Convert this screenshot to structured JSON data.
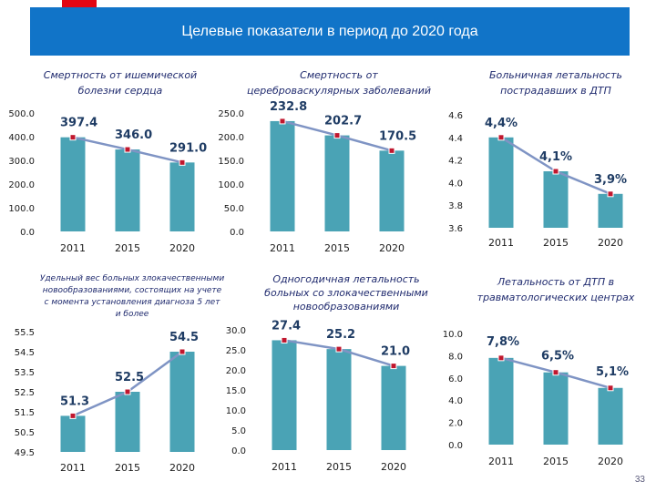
{
  "header": {
    "title": "Целевые показатели в период до 2020 года"
  },
  "page_number": "33",
  "colors": {
    "bar": "#4aa3b5",
    "line": "#7f94c4",
    "marker": "#c0172e",
    "header_bg": "#1174c8",
    "accent": "#e30613"
  },
  "chart_data": [
    {
      "type": "bar",
      "title": [
        "Смертность от ишемической",
        "болезни сердца"
      ],
      "categories": [
        "2011",
        "2015",
        "2020"
      ],
      "values": [
        397.4,
        346.0,
        291.0
      ],
      "value_labels": [
        "397.4",
        "346.0",
        "291.0"
      ],
      "yticks": [
        "0.0",
        "100.0",
        "200.0",
        "300.0",
        "400.0",
        "500.0"
      ],
      "ylim": [
        0,
        500
      ],
      "overlay_line": true
    },
    {
      "type": "bar",
      "title": [
        "Смертность от",
        "цереброваскулярных заболеваний"
      ],
      "categories": [
        "2011",
        "2015",
        "2020"
      ],
      "values": [
        232.8,
        202.7,
        170.5
      ],
      "value_labels": [
        "232.8",
        "202.7",
        "170.5"
      ],
      "yticks": [
        "0.0",
        "50.0",
        "100.0",
        "150.0",
        "200.0",
        "250.0"
      ],
      "ylim": [
        0,
        250
      ],
      "overlay_line": true
    },
    {
      "type": "bar",
      "title": [
        "Больничная летальность",
        "пострадавших в ДТП"
      ],
      "categories": [
        "2011",
        "2015",
        "2020"
      ],
      "values": [
        4.4,
        4.1,
        3.9
      ],
      "value_labels": [
        "4,4%",
        "4,1%",
        "3,9%"
      ],
      "yticks": [
        "3.6",
        "3.8",
        "4.0",
        "4.2",
        "4.4",
        "4.6"
      ],
      "ylim": [
        3.6,
        4.6
      ],
      "overlay_line": true
    },
    {
      "type": "bar",
      "title": [
        "Удельный вес больных злокачественными",
        "новообразованиями, состоящих на учете",
        "с момента установления диагноза 5 лет",
        "и более"
      ],
      "categories": [
        "2011",
        "2015",
        "2020"
      ],
      "values": [
        51.3,
        52.5,
        54.5
      ],
      "value_labels": [
        "51.3",
        "52.5",
        "54.5"
      ],
      "yticks": [
        "49.5",
        "50.5",
        "51.5",
        "52.5",
        "53.5",
        "54.5",
        "55.5"
      ],
      "ylim": [
        49.5,
        55.5
      ],
      "overlay_line": true
    },
    {
      "type": "bar",
      "title": [
        "Одногодичная летальность",
        "больных со злокачественными",
        "новообразованиями"
      ],
      "categories": [
        "2011",
        "2015",
        "2020"
      ],
      "values": [
        27.4,
        25.2,
        21.0
      ],
      "value_labels": [
        "27.4",
        "25.2",
        "21.0"
      ],
      "yticks": [
        "0.0",
        "5.0",
        "10.0",
        "15.0",
        "20.0",
        "25.0",
        "30.0"
      ],
      "ylim": [
        0,
        30
      ],
      "overlay_line": true
    },
    {
      "type": "bar",
      "title": [
        "Летальность от ДТП в",
        "травматологических центрах"
      ],
      "categories": [
        "2011",
        "2015",
        "2020"
      ],
      "values": [
        7.8,
        6.5,
        5.1
      ],
      "value_labels": [
        "7,8%",
        "6,5%",
        "5,1%"
      ],
      "yticks": [
        "0.0",
        "2.0",
        "4.0",
        "6.0",
        "8.0",
        "10.0"
      ],
      "ylim": [
        0,
        10
      ],
      "overlay_line": true
    }
  ]
}
